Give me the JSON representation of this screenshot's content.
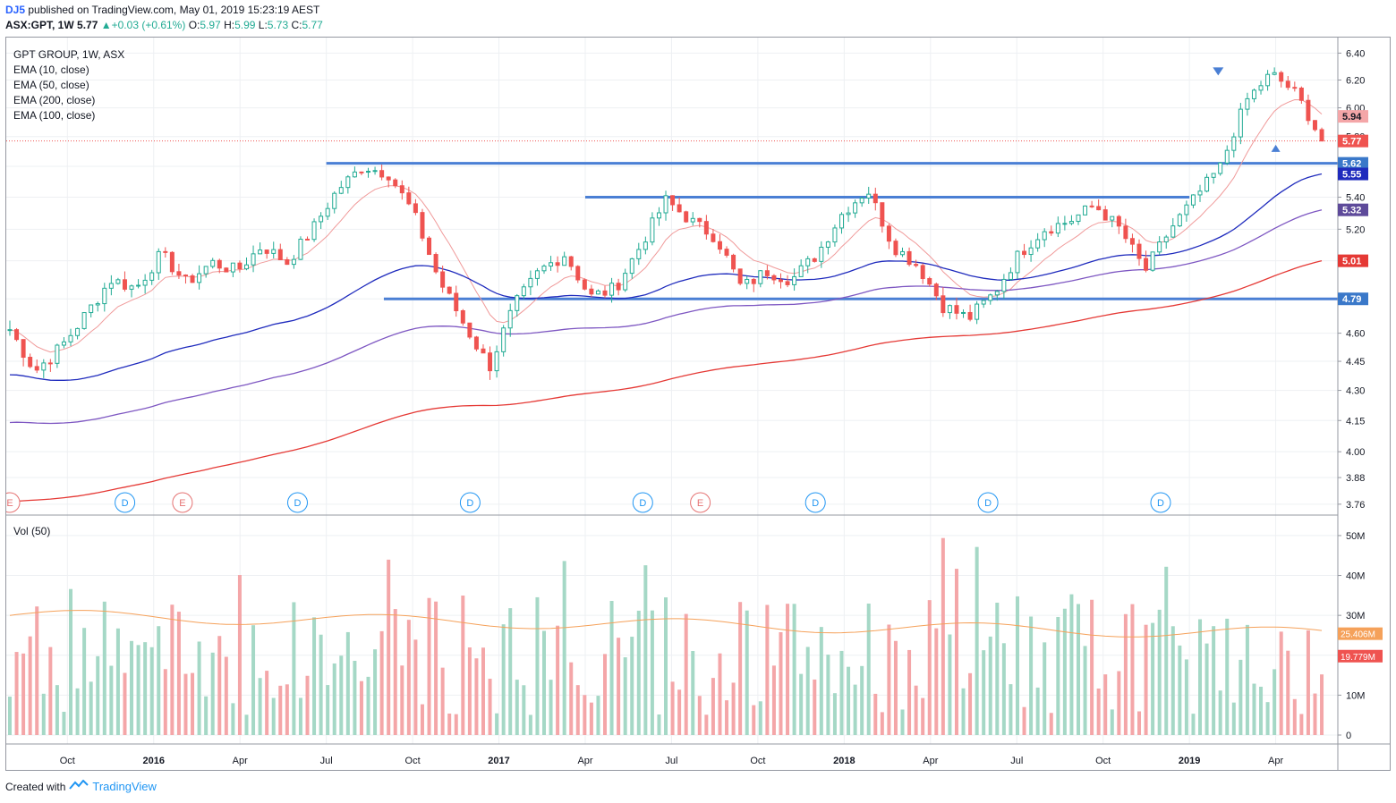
{
  "header": {
    "author": "DJ5",
    "published_text": "published on TradingView.com, May 01, 2019 15:23:19 AEST",
    "symbol": "ASX:GPT, 1W",
    "last": "5.77",
    "change": "+0.03 (+0.61%)",
    "o_label": "O:",
    "o": "5.97",
    "h_label": "H:",
    "h": "5.99",
    "l_label": "L:",
    "l": "5.73",
    "c_label": "C:",
    "c": "5.77"
  },
  "legend": {
    "title": "GPT GROUP, 1W, ASX",
    "indicators": [
      "EMA (10, close)",
      "EMA (50, close)",
      "EMA (200, close)",
      "EMA (100, close)"
    ]
  },
  "volume_legend": "Vol (50)",
  "footer": {
    "created_with": "Created with",
    "brand": "TradingView"
  },
  "colors": {
    "up": "#22ab94",
    "down": "#ef5350",
    "up_vol": "#a5d8c6",
    "down_vol": "#f4a6a8",
    "ema10": "#f09a9a",
    "ema50": "#1f2bbd",
    "ema100": "#7e57c2",
    "ema200": "#e53935",
    "levels": "#4a7fd4",
    "vol_ma": "#f5a15a"
  },
  "chart_data": [
    {
      "type": "candlestick",
      "title": "GPT GROUP, 1W, ASX",
      "x_tick_labels": [
        "Oct",
        "2016",
        "Apr",
        "Jul",
        "Oct",
        "2017",
        "Apr",
        "Jul",
        "Oct",
        "2018",
        "Apr",
        "Jul",
        "Oct",
        "2019",
        "Apr"
      ],
      "x_range": [
        "2015-08",
        "2019-05"
      ],
      "y_tick_labels": [
        "6.40",
        "6.20",
        "6.00",
        "5.80",
        "5.60",
        "5.40",
        "5.20",
        "5.01",
        "4.79",
        "4.60",
        "4.45",
        "4.30",
        "4.15",
        "4.00",
        "3.88",
        "3.76"
      ],
      "ylim": [
        3.72,
        6.45
      ],
      "y_scale": "log",
      "price_labels": [
        {
          "value": "5.94",
          "color": "#f4a6a8"
        },
        {
          "value": "5.77",
          "color": "#ef5350"
        },
        {
          "value": "5.62",
          "color": "#3a78c9"
        },
        {
          "value": "5.55",
          "color": "#1f2bbd"
        },
        {
          "value": "5.32",
          "color": "#5e4a9a"
        },
        {
          "value": "5.01",
          "color": "#e53935"
        },
        {
          "value": "4.79",
          "color": "#3a78c9"
        }
      ],
      "horizontal_levels": [
        {
          "value": 5.62,
          "from": "2016-07",
          "to": "end"
        },
        {
          "value": 5.4,
          "from": "2017-04",
          "to": "2019-01"
        },
        {
          "value": 4.79,
          "from": "2016-09",
          "to": "end"
        }
      ],
      "event_markers": [
        {
          "label": "E",
          "kind": "earnings",
          "time": "2015-08"
        },
        {
          "label": "D",
          "kind": "dividend",
          "time": "2015-12"
        },
        {
          "label": "E",
          "kind": "earnings",
          "time": "2016-02"
        },
        {
          "label": "D",
          "kind": "dividend",
          "time": "2016-06"
        },
        {
          "label": "D",
          "kind": "dividend",
          "time": "2016-12"
        },
        {
          "label": "D",
          "kind": "dividend",
          "time": "2017-06"
        },
        {
          "label": "E",
          "kind": "earnings",
          "time": "2017-08"
        },
        {
          "label": "D",
          "kind": "dividend",
          "time": "2017-12"
        },
        {
          "label": "D",
          "kind": "dividend",
          "time": "2018-06"
        },
        {
          "label": "D",
          "kind": "dividend",
          "time": "2018-12"
        }
      ],
      "close_path_keypoints": [
        4.62,
        4.4,
        4.52,
        4.7,
        4.9,
        4.85,
        5.05,
        4.88,
        5.0,
        4.95,
        5.1,
        5.0,
        5.2,
        5.45,
        5.6,
        5.55,
        5.3,
        4.9,
        4.65,
        4.42,
        4.75,
        4.95,
        5.05,
        4.8,
        4.85,
        5.1,
        5.38,
        5.25,
        5.15,
        4.85,
        4.95,
        4.9,
        5.05,
        5.3,
        5.45,
        5.1,
        4.98,
        4.75,
        4.68,
        4.82,
        5.05,
        5.2,
        5.25,
        5.35,
        5.2,
        4.95,
        5.2,
        5.4,
        5.6,
        6.05,
        6.25,
        6.1,
        5.77
      ],
      "ema_series": [
        {
          "name": "EMA (10, close)",
          "start": 4.55,
          "end": 5.94
        },
        {
          "name": "EMA (50, close)",
          "start": 4.38,
          "end": 5.55
        },
        {
          "name": "EMA (100, close)",
          "start": 4.14,
          "end": 5.32
        },
        {
          "name": "EMA (200, close)",
          "start": 3.77,
          "end": 5.01
        }
      ],
      "markers": [
        {
          "shape": "triangle-down",
          "time": "2019-02"
        },
        {
          "shape": "triangle-up",
          "time": "2019-04"
        }
      ]
    },
    {
      "type": "bar",
      "title": "Vol (50)",
      "y_tick_labels": [
        "50M",
        "40M",
        "30M",
        "20M",
        "10M",
        "0"
      ],
      "ylim": [
        0,
        52
      ],
      "unit": "M",
      "value_labels": [
        {
          "value": "25.406M",
          "color": "#f5a15a"
        },
        {
          "value": "19.779M",
          "color": "#ef5350"
        }
      ],
      "moving_average": {
        "name": "Vol (50)",
        "start": 30,
        "end": 25.4
      },
      "range": {
        "min": 5,
        "max": 52
      }
    }
  ]
}
